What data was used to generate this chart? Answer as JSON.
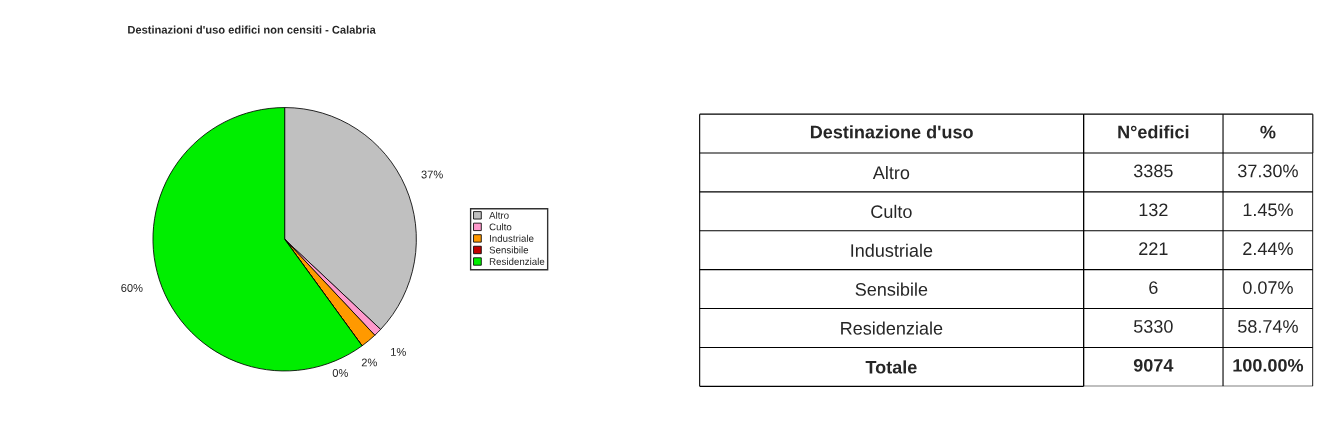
{
  "chart_data": [
    {
      "type": "pie",
      "title": "Destinazioni d'uso edifici non censiti - Calabria",
      "categories": [
        "Altro",
        "Culto",
        "Industriale",
        "Sensibile",
        "Residenziale"
      ],
      "values": [
        37,
        1,
        2,
        0,
        60
      ],
      "value_labels": [
        "37%",
        "1%",
        "2%",
        "0%",
        "60%"
      ],
      "colors": [
        "#c0c0c0",
        "#ff99cc",
        "#ff9900",
        "#c00000",
        "#00ee00"
      ],
      "legend": "right"
    },
    {
      "type": "other",
      "ylabel": "Destinazione d'uso",
      "categories": [
        "N°edifici",
        "%"
      ],
      "y_categories": [
        "Altro",
        "Culto",
        "Industriale",
        "Sensibile",
        "Residenziale",
        "Totale"
      ],
      "cell_labels": [
        [
          "3385",
          "37.30%"
        ],
        [
          "132",
          "1.45%"
        ],
        [
          "221",
          "2.44%"
        ],
        [
          "6",
          "0.07%"
        ],
        [
          "5330",
          "58.74%"
        ],
        [
          "9074",
          "100.00%"
        ]
      ]
    }
  ]
}
